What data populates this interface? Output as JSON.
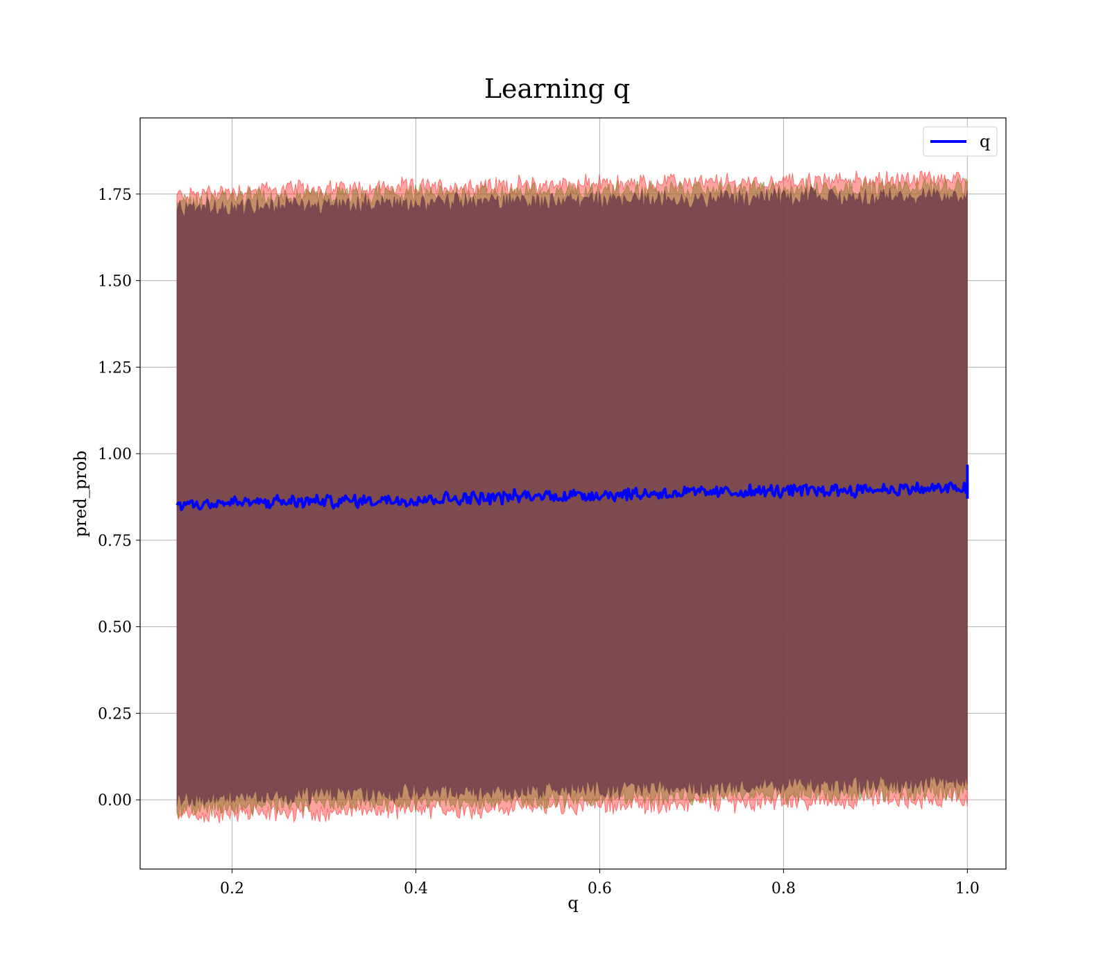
{
  "chart_data": {
    "type": "area",
    "title": "Learning q",
    "xlabel": "q",
    "ylabel": "pred_prob",
    "xlim": [
      0.1,
      1.042
    ],
    "ylim": [
      -0.2,
      1.97
    ],
    "x_ticks": [
      0.2,
      0.4,
      0.6,
      0.8,
      1.0
    ],
    "x_tick_labels": [
      "0.2",
      "0.4",
      "0.6",
      "0.8",
      "1.0"
    ],
    "y_ticks": [
      0.0,
      0.25,
      0.5,
      0.75,
      1.0,
      1.25,
      1.5,
      1.75
    ],
    "y_tick_labels": [
      "0.00",
      "0.25",
      "0.50",
      "0.75",
      "1.00",
      "1.25",
      "1.50",
      "1.75"
    ],
    "grid": true,
    "legend": {
      "placement": "top-right",
      "entries": [
        "q"
      ]
    },
    "series": [
      {
        "name": "q",
        "kind": "line",
        "color": "#0000ff",
        "x": [
          0.14,
          0.2,
          0.3,
          0.4,
          0.5,
          0.6,
          0.7,
          0.8,
          0.9,
          1.0
        ],
        "values": [
          0.855,
          0.858,
          0.862,
          0.868,
          0.875,
          0.882,
          0.887,
          0.892,
          0.897,
          0.9
        ]
      }
    ],
    "bands": [
      {
        "color": "#ff3030",
        "opacity": 0.45,
        "x": [
          0.14,
          0.2,
          0.3,
          0.4,
          0.5,
          0.6,
          0.7,
          0.8,
          0.9,
          1.0
        ],
        "upper": [
          1.745,
          1.76,
          1.765,
          1.77,
          1.775,
          1.78,
          1.782,
          1.785,
          1.79,
          1.795
        ],
        "lower": [
          -0.05,
          -0.04,
          -0.035,
          -0.03,
          -0.025,
          -0.015,
          -0.01,
          -0.005,
          0.0,
          0.005
        ]
      },
      {
        "color": "#8a7a2a",
        "opacity": 0.5,
        "x": [
          0.14,
          0.2,
          0.3,
          0.4,
          0.5,
          0.6,
          0.7,
          0.8,
          0.9,
          1.0
        ],
        "upper": [
          1.725,
          1.74,
          1.745,
          1.75,
          1.755,
          1.76,
          1.762,
          1.765,
          1.77,
          1.775
        ],
        "lower": [
          -0.03,
          -0.02,
          -0.015,
          -0.01,
          -0.005,
          0.005,
          0.01,
          0.015,
          0.02,
          0.025
        ]
      },
      {
        "color": "#6b3a4a",
        "opacity": 0.8,
        "x": [
          0.14,
          0.2,
          0.3,
          0.4,
          0.5,
          0.6,
          0.7,
          0.8,
          0.9,
          1.0
        ],
        "upper": [
          1.7,
          1.715,
          1.72,
          1.725,
          1.73,
          1.735,
          1.738,
          1.74,
          1.742,
          1.745
        ],
        "lower": [
          0.0,
          0.01,
          0.015,
          0.02,
          0.025,
          0.03,
          0.035,
          0.04,
          0.045,
          0.05
        ]
      }
    ]
  }
}
